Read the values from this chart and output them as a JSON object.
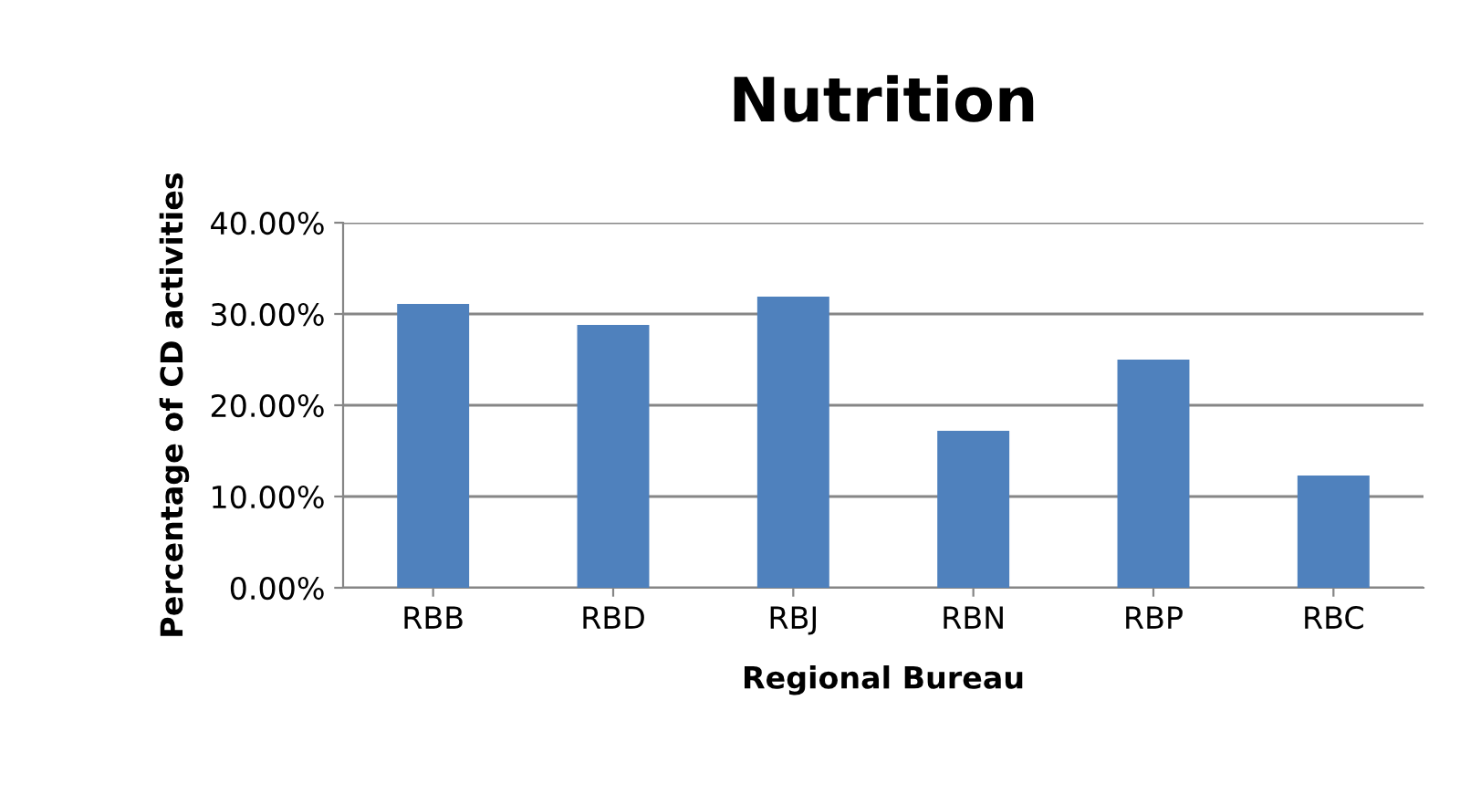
{
  "chart_data": {
    "type": "bar",
    "title": "Nutrition",
    "xlabel": "Regional Bureau",
    "ylabel": "Percentage of CD activities",
    "categories": [
      "RBB",
      "RBD",
      "RBJ",
      "RBN",
      "RBP",
      "RBC"
    ],
    "values": [
      31.1,
      28.8,
      31.9,
      17.2,
      25.0,
      12.3
    ],
    "color": "#4f81bd",
    "ylim": [
      0,
      40
    ],
    "yticks": [
      {
        "value": 0,
        "label": "0.00%"
      },
      {
        "value": 10,
        "label": "10.00%"
      },
      {
        "value": 20,
        "label": "20.00%"
      },
      {
        "value": 30,
        "label": "30.00%"
      },
      {
        "value": 40,
        "label": "40.00%"
      }
    ],
    "grid": "y",
    "legend": false
  }
}
